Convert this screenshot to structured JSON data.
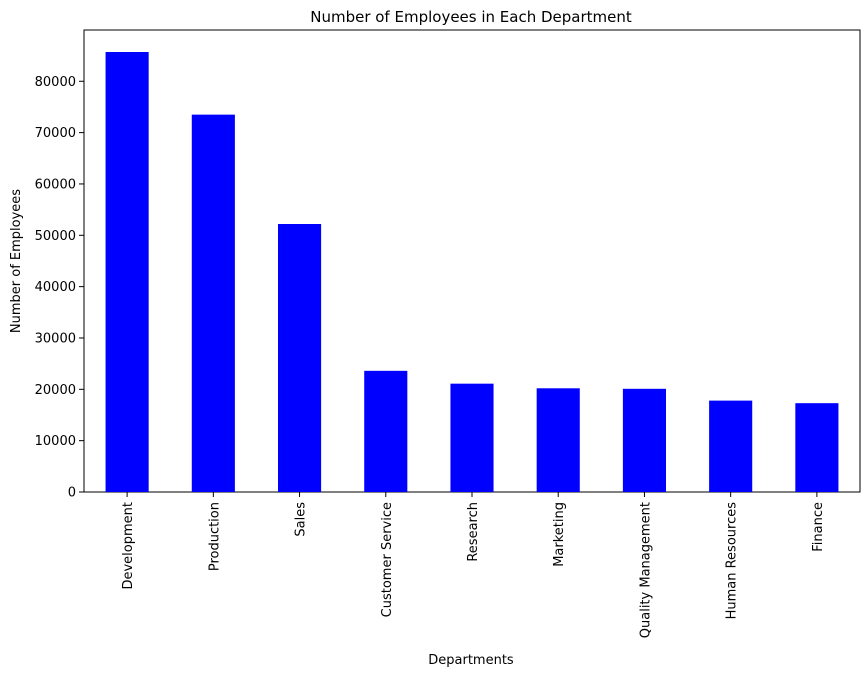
{
  "chart_data": {
    "type": "bar",
    "title": "Number of Employees in Each Department",
    "xlabel": "Departments",
    "ylabel": "Number of Employees",
    "categories": [
      "Development",
      "Production",
      "Sales",
      "Customer Service",
      "Research",
      "Marketing",
      "Quality Management",
      "Human Resources",
      "Finance"
    ],
    "values": [
      85700,
      73500,
      52200,
      23600,
      21100,
      20200,
      20100,
      17800,
      17300
    ],
    "yticks": [
      0,
      10000,
      20000,
      30000,
      40000,
      50000,
      60000,
      70000,
      80000
    ],
    "ylim": [
      0,
      89985
    ],
    "bar_color": "#0000ff",
    "grid": false,
    "legend": false
  }
}
